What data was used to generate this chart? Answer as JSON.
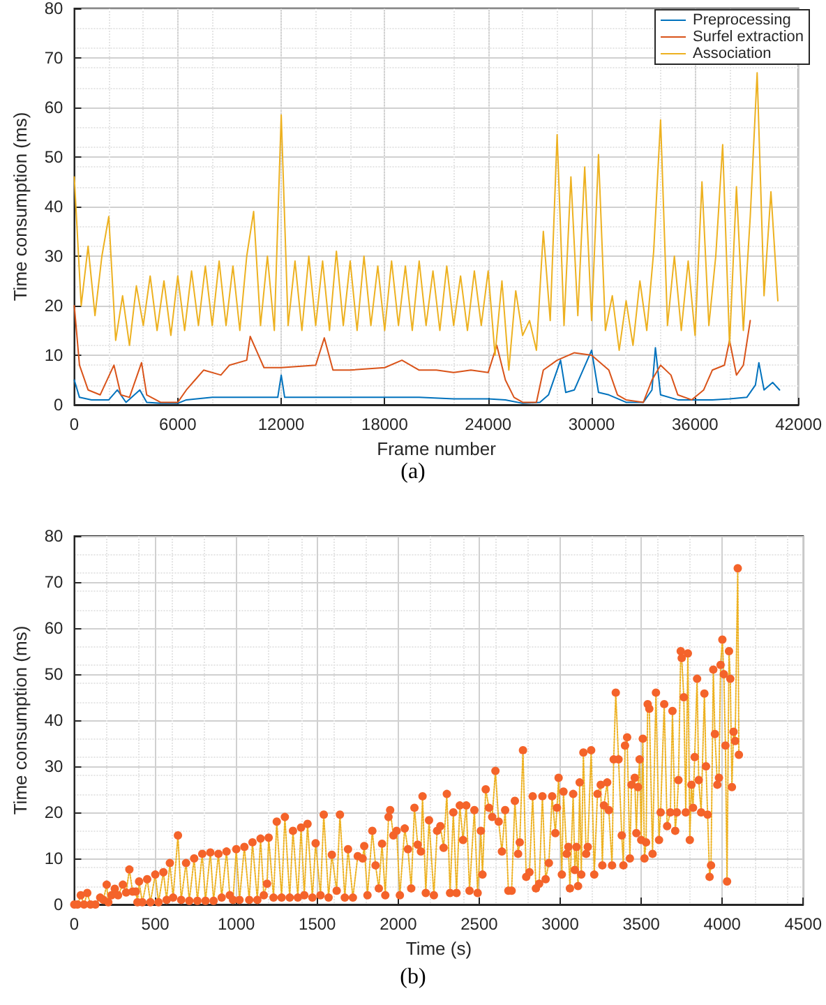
{
  "chart_data": [
    {
      "type": "line",
      "xlabel": "Frame number",
      "ylabel": "Time consumption (ms)",
      "annotations": [
        "(a)"
      ],
      "xlim": [
        0,
        42000
      ],
      "xticks": [
        0,
        6000,
        12000,
        18000,
        24000,
        30000,
        36000,
        42000
      ],
      "ylim": [
        0,
        80
      ],
      "yticks": [
        0,
        10,
        20,
        30,
        40,
        50,
        60,
        70,
        80
      ],
      "grid": true,
      "legend": "top right",
      "series": [
        {
          "name": "Preprocessing",
          "color": "#0072bd",
          "x": [
            0,
            300,
            1000,
            2000,
            2500,
            3000,
            3800,
            4200,
            5000,
            6000,
            6500,
            8000,
            10000,
            11800,
            12000,
            12200,
            14000,
            16000,
            18000,
            20000,
            22000,
            24000,
            25000,
            26000,
            27000,
            27500,
            28200,
            28500,
            29000,
            30000,
            30400,
            31000,
            32000,
            33000,
            33500,
            33700,
            34000,
            35000,
            36000,
            37000,
            38000,
            39000,
            39500,
            39700,
            40000,
            40500,
            40900
          ],
          "values": [
            5,
            1.5,
            1,
            1,
            3,
            0.5,
            3,
            0.5,
            0.3,
            0.3,
            1,
            1.5,
            1.5,
            1.5,
            6,
            1.5,
            1.5,
            1.5,
            1.5,
            1.5,
            1.2,
            1.2,
            1,
            0.3,
            0.5,
            2,
            9,
            2.5,
            3,
            11,
            2.5,
            2,
            0.5,
            0.5,
            3,
            11.5,
            2,
            1,
            1,
            1,
            1.2,
            1.5,
            4,
            8.5,
            3,
            4.5,
            3
          ]
        },
        {
          "name": "Surfel extraction",
          "color": "#d95319",
          "x": [
            0,
            300,
            800,
            1500,
            2300,
            2700,
            3200,
            3900,
            4200,
            5000,
            6000,
            6500,
            7000,
            7500,
            8500,
            9000,
            10000,
            10200,
            11000,
            12000,
            14000,
            14500,
            15000,
            16000,
            18000,
            19000,
            20000,
            21000,
            22000,
            23000,
            24000,
            24500,
            25000,
            25500,
            26000,
            26800,
            27200,
            28000,
            29000,
            30000,
            31000,
            31500,
            32000,
            33000,
            33500,
            34000,
            34600,
            35000,
            35800,
            36500,
            37000,
            37700,
            38000,
            38400,
            38800,
            39200
          ],
          "values": [
            20,
            8,
            3,
            2,
            8,
            2,
            1.5,
            8.5,
            2,
            0.5,
            0.5,
            3,
            5,
            7,
            6,
            8,
            9,
            13.8,
            7.5,
            7.5,
            8,
            13.5,
            7,
            7,
            7.5,
            9,
            7,
            7,
            6.5,
            7,
            6.5,
            12,
            5,
            1.5,
            0.5,
            0.5,
            7,
            9,
            10.5,
            10,
            7,
            2,
            1,
            0.5,
            5,
            8,
            6,
            2,
            1,
            3,
            7,
            8,
            13,
            6,
            8,
            17
          ]
        },
        {
          "name": "Association",
          "color": "#edb120",
          "x": [
            0,
            400,
            800,
            1200,
            1600,
            2000,
            2400,
            2800,
            3200,
            3600,
            4000,
            4400,
            4800,
            5200,
            5600,
            6000,
            6400,
            6800,
            7200,
            7600,
            8000,
            8400,
            8800,
            9200,
            9600,
            10000,
            10400,
            10800,
            11200,
            11600,
            12000,
            12400,
            12800,
            13200,
            13600,
            14000,
            14400,
            14800,
            15200,
            15600,
            16000,
            16400,
            16800,
            17200,
            17600,
            18000,
            18400,
            18800,
            19200,
            19600,
            20000,
            20400,
            20800,
            21200,
            21600,
            22000,
            22400,
            22800,
            23200,
            23600,
            24000,
            24400,
            24800,
            25200,
            25600,
            26000,
            26400,
            26800,
            27200,
            27600,
            28000,
            28400,
            28800,
            29200,
            29600,
            30000,
            30400,
            30800,
            31200,
            31600,
            32000,
            32400,
            32800,
            33200,
            33600,
            34000,
            34400,
            34800,
            35200,
            35600,
            36000,
            36400,
            36800,
            37200,
            37600,
            38000,
            38400,
            38800,
            39200,
            39600,
            40000,
            40400,
            40800
          ],
          "values": [
            46,
            20,
            32,
            18,
            30,
            38,
            13,
            22,
            12,
            24,
            16,
            26,
            15,
            25,
            14,
            26,
            15,
            27,
            16,
            28,
            16,
            29,
            16,
            28,
            15,
            30,
            39,
            16,
            30,
            15,
            58.5,
            16,
            29,
            15,
            30,
            16,
            29,
            15,
            31,
            16,
            29,
            15,
            30,
            16,
            28,
            15,
            29,
            16,
            28,
            15,
            29,
            16,
            27,
            15,
            28,
            16,
            26,
            15,
            27,
            16,
            27,
            10,
            25,
            7,
            23,
            14,
            17,
            11,
            35,
            17,
            54.5,
            16,
            46,
            18,
            48,
            17,
            50.5,
            15,
            22,
            11,
            21,
            12,
            25,
            15,
            31,
            57.5,
            16,
            30,
            15,
            29,
            14,
            45,
            16,
            30,
            52.5,
            12,
            44,
            15,
            38,
            67,
            22,
            43,
            21
          ]
        }
      ]
    },
    {
      "type": "scatter",
      "xlabel": "Time (s)",
      "ylabel": "Time consumption (ms)",
      "annotations": [
        "(b)"
      ],
      "xlim": [
        0,
        4500
      ],
      "xticks": [
        0,
        500,
        1000,
        1500,
        2000,
        2500,
        3000,
        3500,
        4000,
        4500
      ],
      "ylim": [
        0,
        80
      ],
      "yticks": [
        0,
        10,
        20,
        30,
        40,
        50,
        60,
        70,
        80
      ],
      "grid": true,
      "series": [
        {
          "type": "line",
          "line_style": "dotted",
          "marker": "none",
          "color": "#edb120",
          "x": [
            0,
            20,
            40,
            60,
            80,
            100,
            130,
            160,
            180,
            200,
            210,
            230,
            250,
            270,
            300,
            320,
            340,
            360,
            380,
            390,
            400,
            420,
            450,
            470,
            500,
            520,
            550,
            570,
            590,
            610,
            640,
            660,
            690,
            710,
            740,
            760,
            790,
            810,
            840,
            860,
            890,
            910,
            940,
            960,
            980,
            1000,
            1020,
            1050,
            1080,
            1100,
            1130,
            1150,
            1170,
            1190,
            1200,
            1230,
            1250,
            1280,
            1300,
            1330,
            1350,
            1380,
            1400,
            1420,
            1440,
            1470,
            1490,
            1520,
            1540,
            1570,
            1590,
            1620,
            1640,
            1670,
            1690,
            1720,
            1750,
            1780,
            1790,
            1810,
            1840,
            1860,
            1880,
            1900,
            1920,
            1940,
            1950,
            1970,
            1990,
            2010,
            2040,
            2060,
            2080,
            2100,
            2120,
            2140,
            2150,
            2170,
            2190,
            2220,
            2240,
            2260,
            2280,
            2300,
            2320,
            2340,
            2360,
            2380,
            2400,
            2420,
            2440,
            2470,
            2490,
            2510,
            2520,
            2540,
            2560,
            2580,
            2600,
            2620,
            2640,
            2660,
            2680,
            2700,
            2720,
            2740,
            2750,
            2770,
            2790,
            2810,
            2830,
            2850,
            2870,
            2890,
            2910,
            2930,
            2950,
            2970,
            2980,
            2990,
            3010,
            3020,
            3040,
            3050,
            3060,
            3080,
            3090,
            3100,
            3110,
            3120,
            3130,
            3143,
            3160,
            3170,
            3191,
            3210,
            3230,
            3250,
            3260,
            3270,
            3290,
            3300,
            3320,
            3330,
            3343,
            3360,
            3380,
            3390,
            3400,
            3413,
            3430,
            3440,
            3460,
            3470,
            3480,
            3490,
            3500,
            3510,
            3520,
            3530,
            3540,
            3550,
            3570,
            3591,
            3610,
            3620,
            3642,
            3660,
            3680,
            3693,
            3710,
            3720,
            3730,
            3744,
            3750,
            3763,
            3775,
            3788,
            3800,
            3810,
            3820,
            3830,
            3845,
            3855,
            3870,
            3890,
            3900,
            3910,
            3922,
            3931,
            3945,
            3955,
            3970,
            3980,
            3990,
            4001,
            4010,
            4020,
            4030,
            4042,
            4050,
            4060,
            4070,
            4080,
            4096,
            4103
          ],
          "values": [
            0,
            0,
            2,
            0,
            2.5,
            0,
            0,
            1.5,
            1,
            4.3,
            0.5,
            2,
            3.4,
            2,
            4.3,
            2.6,
            7.6,
            2.8,
            2.8,
            0.5,
            5,
            0.5,
            5.5,
            0.5,
            6.5,
            0.5,
            7,
            1,
            9,
            1.5,
            15,
            1,
            9,
            0.8,
            10,
            0.8,
            11,
            0.8,
            11.3,
            0.8,
            11,
            1.5,
            11.5,
            2,
            1,
            12,
            1,
            12.5,
            1,
            13.5,
            1,
            14.3,
            2,
            4.5,
            14.5,
            1.5,
            18,
            1.5,
            19,
            1.5,
            16,
            1.5,
            16.7,
            2,
            17.5,
            1.5,
            13.3,
            2,
            19.5,
            1.5,
            10.8,
            3,
            19.5,
            1.5,
            12,
            1.5,
            10.5,
            10,
            12.7,
            2,
            16,
            8.5,
            3.5,
            13.2,
            2,
            19,
            20.5,
            15,
            16,
            2,
            16.5,
            12,
            3.5,
            21,
            13,
            11.5,
            23.5,
            2.5,
            18.3,
            2,
            16,
            17,
            12.3,
            24,
            2.5,
            20,
            2.5,
            21.5,
            14,
            21.5,
            3,
            20.5,
            2.5,
            16,
            6.5,
            25,
            21,
            19,
            29,
            18,
            11.5,
            20.5,
            3,
            3,
            22.5,
            11,
            13.5,
            33.5,
            6,
            7,
            23.5,
            3.5,
            4.5,
            23.5,
            5.5,
            9,
            23.5,
            15.5,
            21,
            27.5,
            6.5,
            24.5,
            11,
            12.5,
            3.5,
            24,
            7.5,
            12.5,
            4,
            26.5,
            6.5,
            33,
            11,
            12.5,
            33.5,
            6.5,
            24,
            26,
            8.5,
            21.5,
            26.5,
            20.5,
            8.5,
            31.5,
            46,
            31.5,
            15,
            8.5,
            34.5,
            36.3,
            10,
            26,
            27.5,
            15.5,
            25.5,
            31.5,
            14,
            36,
            10,
            13.5,
            43.5,
            42.5,
            11,
            46,
            14,
            20,
            43.5,
            17,
            20,
            42,
            16,
            20,
            27,
            55,
            53.5,
            45,
            20,
            54.5,
            14,
            26,
            21,
            32,
            49,
            27,
            20,
            45.8,
            30,
            19.5,
            6,
            8.5,
            51,
            37,
            26,
            27.5,
            52,
            57.5,
            50,
            34.5,
            5,
            55,
            49,
            25.5,
            37.5,
            35.5,
            73,
            32.5
          ]
        },
        {
          "type": "scatter",
          "marker": "circle",
          "color": "#f4632a",
          "x": [
            0,
            20,
            40,
            60,
            80,
            100,
            130,
            160,
            180,
            200,
            210,
            230,
            250,
            270,
            300,
            320,
            340,
            360,
            380,
            390,
            400,
            420,
            450,
            470,
            500,
            520,
            550,
            570,
            590,
            610,
            640,
            660,
            690,
            710,
            740,
            760,
            790,
            810,
            840,
            860,
            890,
            910,
            940,
            960,
            980,
            1000,
            1020,
            1050,
            1080,
            1100,
            1130,
            1150,
            1170,
            1190,
            1200,
            1230,
            1250,
            1280,
            1300,
            1330,
            1350,
            1380,
            1400,
            1420,
            1440,
            1470,
            1490,
            1520,
            1540,
            1570,
            1590,
            1620,
            1640,
            1670,
            1690,
            1720,
            1750,
            1780,
            1790,
            1810,
            1840,
            1860,
            1880,
            1900,
            1920,
            1940,
            1950,
            1970,
            1990,
            2010,
            2040,
            2060,
            2080,
            2100,
            2120,
            2140,
            2150,
            2170,
            2190,
            2220,
            2240,
            2260,
            2280,
            2300,
            2320,
            2340,
            2360,
            2380,
            2400,
            2420,
            2440,
            2470,
            2490,
            2510,
            2520,
            2540,
            2560,
            2580,
            2600,
            2620,
            2640,
            2660,
            2680,
            2700,
            2720,
            2740,
            2750,
            2770,
            2790,
            2810,
            2830,
            2850,
            2870,
            2890,
            2910,
            2930,
            2950,
            2970,
            2980,
            2990,
            3010,
            3020,
            3040,
            3050,
            3060,
            3080,
            3090,
            3100,
            3110,
            3120,
            3130,
            3143,
            3160,
            3170,
            3191,
            3210,
            3230,
            3250,
            3260,
            3270,
            3290,
            3300,
            3320,
            3330,
            3343,
            3360,
            3380,
            3390,
            3400,
            3413,
            3430,
            3440,
            3460,
            3470,
            3480,
            3490,
            3500,
            3510,
            3520,
            3530,
            3540,
            3550,
            3570,
            3591,
            3610,
            3620,
            3642,
            3660,
            3680,
            3693,
            3710,
            3720,
            3730,
            3744,
            3750,
            3763,
            3775,
            3788,
            3800,
            3810,
            3820,
            3830,
            3845,
            3855,
            3870,
            3890,
            3900,
            3910,
            3922,
            3931,
            3945,
            3955,
            3970,
            3980,
            3990,
            4001,
            4010,
            4020,
            4030,
            4042,
            4050,
            4060,
            4070,
            4080,
            4096,
            4103
          ],
          "values": [
            0,
            0,
            2,
            0,
            2.5,
            0,
            0,
            1.5,
            1,
            4.3,
            0.5,
            2,
            3.4,
            2,
            4.3,
            2.6,
            7.6,
            2.8,
            2.8,
            0.5,
            5,
            0.5,
            5.5,
            0.5,
            6.5,
            0.5,
            7,
            1,
            9,
            1.5,
            15,
            1,
            9,
            0.8,
            10,
            0.8,
            11,
            0.8,
            11.3,
            0.8,
            11,
            1.5,
            11.5,
            2,
            1,
            12,
            1,
            12.5,
            1,
            13.5,
            1,
            14.3,
            2,
            4.5,
            14.5,
            1.5,
            18,
            1.5,
            19,
            1.5,
            16,
            1.5,
            16.7,
            2,
            17.5,
            1.5,
            13.3,
            2,
            19.5,
            1.5,
            10.8,
            3,
            19.5,
            1.5,
            12,
            1.5,
            10.5,
            10,
            12.7,
            2,
            16,
            8.5,
            3.5,
            13.2,
            2,
            19,
            20.5,
            15,
            16,
            2,
            16.5,
            12,
            3.5,
            21,
            13,
            11.5,
            23.5,
            2.5,
            18.3,
            2,
            16,
            17,
            12.3,
            24,
            2.5,
            20,
            2.5,
            21.5,
            14,
            21.5,
            3,
            20.5,
            2.5,
            16,
            6.5,
            25,
            21,
            19,
            29,
            18,
            11.5,
            20.5,
            3,
            3,
            22.5,
            11,
            13.5,
            33.5,
            6,
            7,
            23.5,
            3.5,
            4.5,
            23.5,
            5.5,
            9,
            23.5,
            15.5,
            21,
            27.5,
            6.5,
            24.5,
            11,
            12.5,
            3.5,
            24,
            7.5,
            12.5,
            4,
            26.5,
            6.5,
            33,
            11,
            12.5,
            33.5,
            6.5,
            24,
            26,
            8.5,
            21.5,
            26.5,
            20.5,
            8.5,
            31.5,
            46,
            31.5,
            15,
            8.5,
            34.5,
            36.3,
            10,
            26,
            27.5,
            15.5,
            25.5,
            31.5,
            14,
            36,
            10,
            13.5,
            43.5,
            42.5,
            11,
            46,
            14,
            20,
            43.5,
            17,
            20,
            42,
            16,
            20,
            27,
            55,
            53.5,
            45,
            20,
            54.5,
            14,
            26,
            21,
            32,
            49,
            27,
            20,
            45.8,
            30,
            19.5,
            6,
            8.5,
            51,
            37,
            26,
            27.5,
            52,
            57.5,
            50,
            34.5,
            5,
            55,
            49,
            25.5,
            37.5,
            35.5,
            73,
            32.5
          ]
        }
      ]
    }
  ]
}
